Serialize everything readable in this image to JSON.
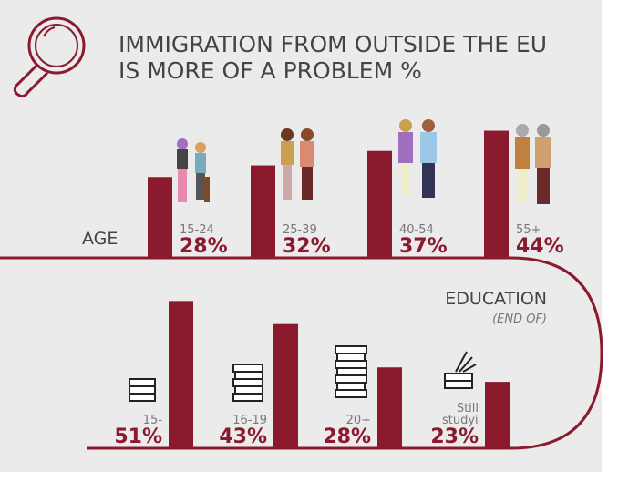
{
  "title": [
    "IMMIGRATION FROM OUTSIDE THE EU",
    "IS MORE OF A PROBLEM %"
  ],
  "chart_data": [
    {
      "type": "bar",
      "label": "AGE",
      "color": "#8b1a2e",
      "categories": [
        "15-24",
        "25-39",
        "40-54",
        "55+"
      ],
      "values": [
        28,
        32,
        37,
        44
      ],
      "value_labels": [
        "28%",
        "32%",
        "37%",
        "44%"
      ]
    },
    {
      "type": "bar",
      "label": "EDUCATION",
      "sublabel": "(END OF)",
      "color": "#8b1a2e",
      "categories": [
        "15-",
        "16-19",
        "20+",
        "Still studying"
      ],
      "values": [
        51,
        43,
        28,
        23
      ],
      "value_labels": [
        "51%",
        "43%",
        "28%",
        "23%"
      ]
    }
  ]
}
